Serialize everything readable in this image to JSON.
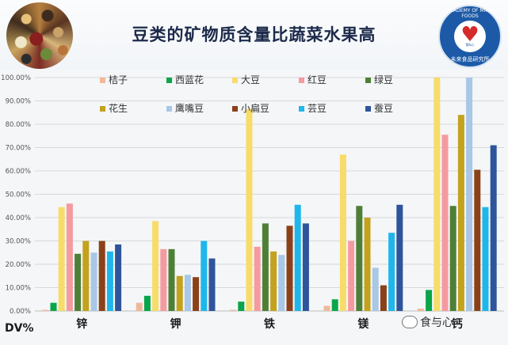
{
  "header": {
    "title": "豆类的矿物质含量比蔬菜水果高",
    "logo_text": "ACADEMY OF MIRAI FOODS",
    "logo_sub": "未来食品研究所",
    "logo_mark": "食&心"
  },
  "footer": {
    "unit_label": "DV%",
    "watermark": "食与心"
  },
  "chart_data": {
    "type": "bar",
    "categories": [
      "锌",
      "钾",
      "铁",
      "镁",
      "钙"
    ],
    "ylim": [
      0,
      100
    ],
    "yticks": [
      "0.00%",
      "10.00%",
      "20.00%",
      "30.00%",
      "40.00%",
      "50.00%",
      "60.00%",
      "70.00%",
      "80.00%",
      "90.00%",
      "100.00%"
    ],
    "grid": true,
    "legend_position": "top",
    "series": [
      {
        "name": "桔子",
        "color": "#f0b89a",
        "values": [
          0.5,
          3.5,
          0.5,
          2.2,
          1.0
        ]
      },
      {
        "name": "西蓝花",
        "color": "#0aa54a",
        "values": [
          3.5,
          6.5,
          4.0,
          5.0,
          9.0
        ]
      },
      {
        "name": "大豆",
        "color": "#f7dc6a",
        "values": [
          44.5,
          38.5,
          86.5,
          67.0,
          100.0
        ]
      },
      {
        "name": "红豆",
        "color": "#f59aa0",
        "values": [
          46.0,
          26.5,
          27.5,
          30.0,
          75.5
        ]
      },
      {
        "name": "绿豆",
        "color": "#4f7f37",
        "values": [
          24.5,
          26.5,
          37.5,
          45.0,
          45.0
        ]
      },
      {
        "name": "花生",
        "color": "#c3a21d",
        "values": [
          30.0,
          15.0,
          25.5,
          40.0,
          84.0
        ]
      },
      {
        "name": "鹰嘴豆",
        "color": "#a9c7e6",
        "values": [
          25.0,
          15.5,
          24.0,
          18.5,
          100.0
        ]
      },
      {
        "name": "小扁豆",
        "color": "#8a4119",
        "values": [
          30.0,
          14.5,
          36.5,
          11.0,
          60.5
        ]
      },
      {
        "name": "芸豆",
        "color": "#1fb6ec",
        "values": [
          25.5,
          30.0,
          45.5,
          33.5,
          44.5
        ]
      },
      {
        "name": "蚕豆",
        "color": "#2e559b",
        "values": [
          28.5,
          22.5,
          37.5,
          45.5,
          71.0
        ]
      }
    ]
  }
}
